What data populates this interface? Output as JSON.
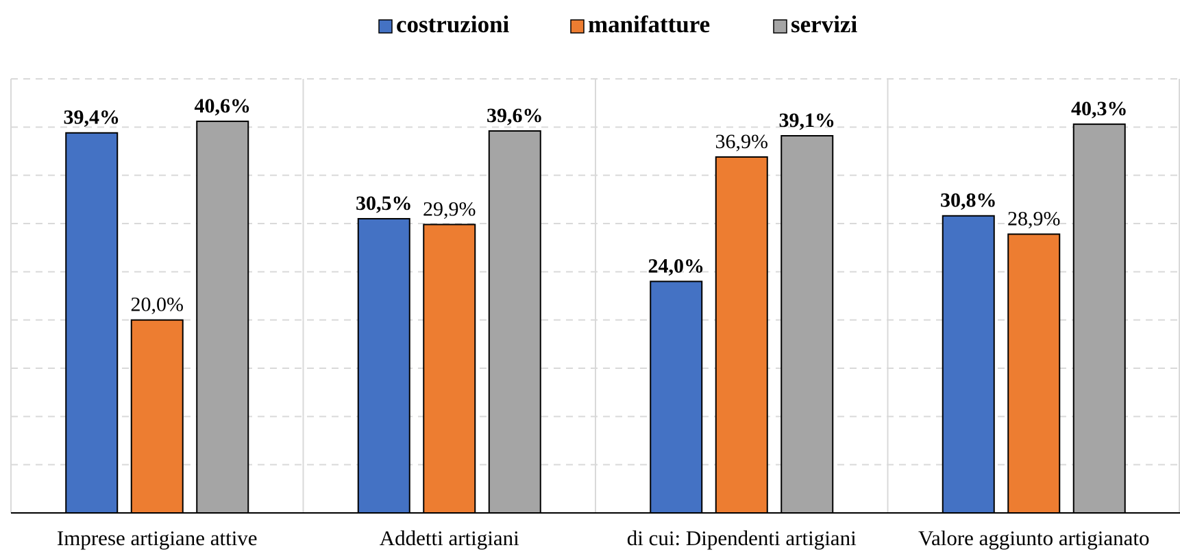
{
  "chart_data": {
    "type": "bar",
    "categories": [
      "Imprese artigiane attive",
      "Addetti artigiani",
      "di cui: Dipendenti artigiani",
      "Valore aggiunto artigianato"
    ],
    "series": [
      {
        "name": "costruzioni",
        "color": "#4472c4",
        "values": [
          39.4,
          30.5,
          24.0,
          30.8
        ],
        "value_labels": [
          "39,4%",
          "30,5%",
          "24,0%",
          "30,8%"
        ]
      },
      {
        "name": "manifatture",
        "color": "#ed7d31",
        "values": [
          20.0,
          29.9,
          36.9,
          28.9
        ],
        "value_labels": [
          "20,0%",
          "29,9%",
          "36,9%",
          "28,9%"
        ]
      },
      {
        "name": "servizi",
        "color": "#a5a5a5",
        "values": [
          40.6,
          39.6,
          39.1,
          40.3
        ],
        "value_labels": [
          "40,6%",
          "39,6%",
          "39,1%",
          "40,3%"
        ]
      }
    ],
    "ylim": [
      0,
      45
    ],
    "yticks": [
      0,
      5,
      10,
      15,
      20,
      25,
      30,
      35,
      40,
      45
    ],
    "grid": true,
    "legend": "top"
  }
}
